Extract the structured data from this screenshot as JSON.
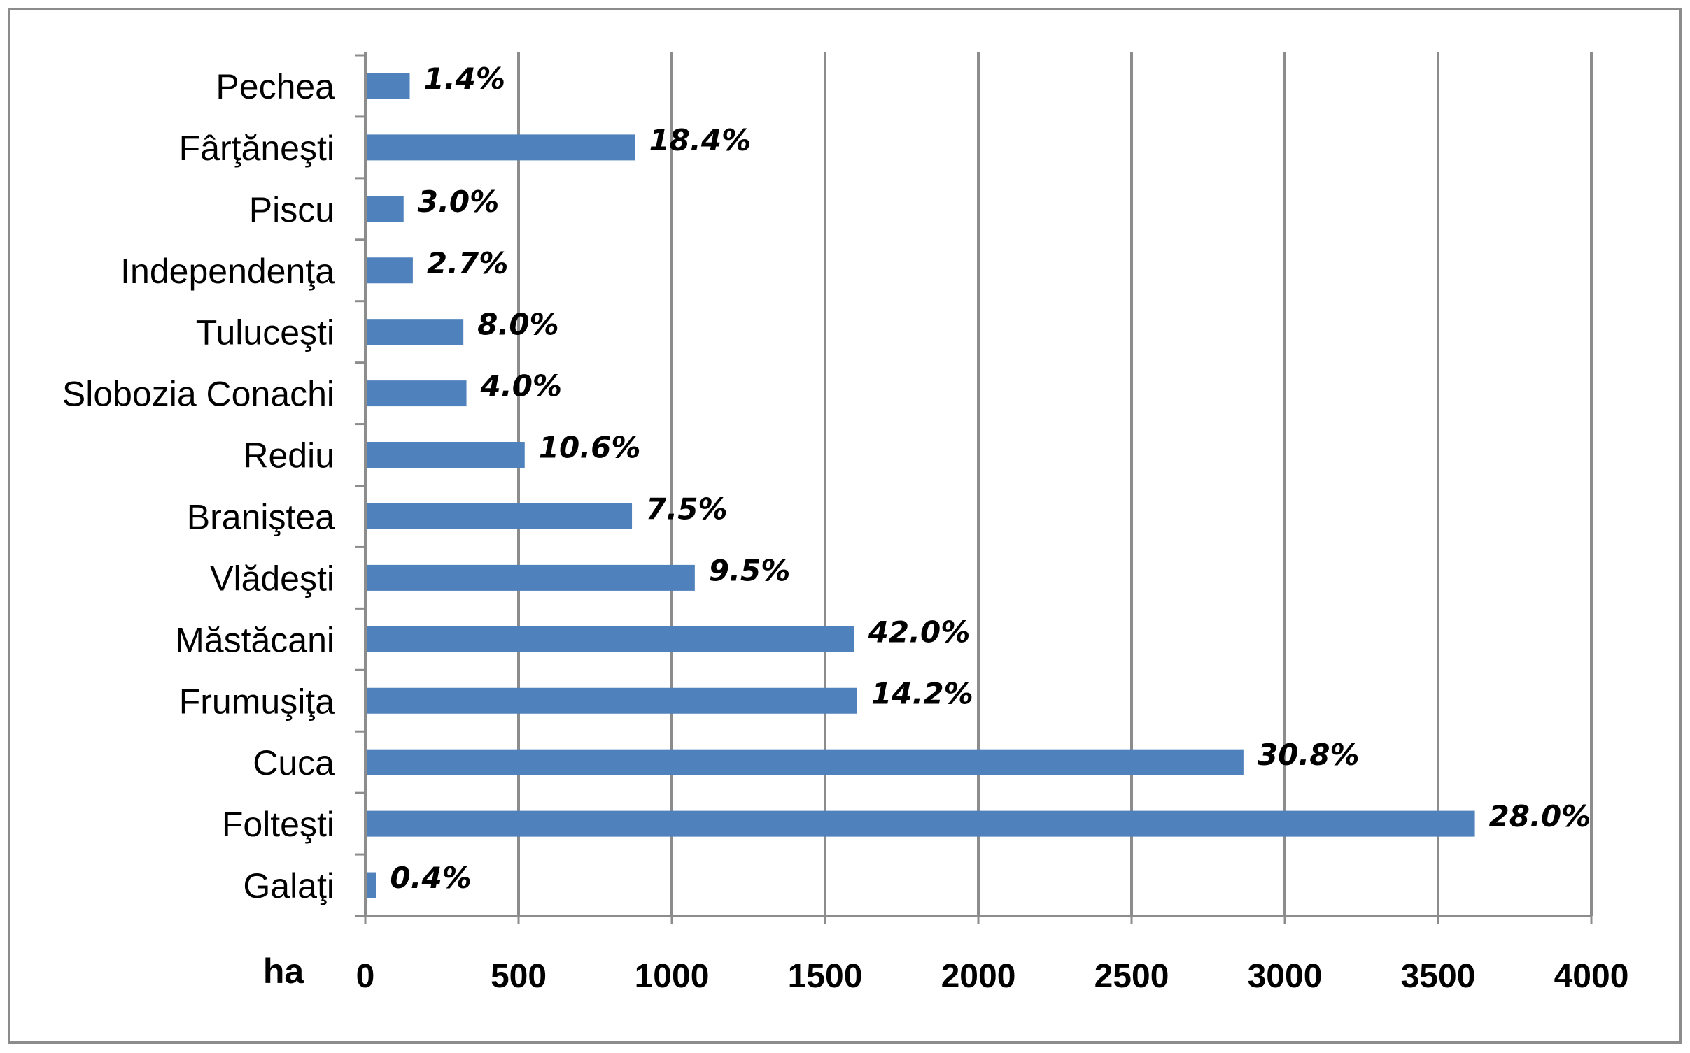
{
  "chart_data": {
    "type": "bar",
    "orientation": "horizontal",
    "title": "",
    "xlabel": "",
    "ylabel": "",
    "unit": "ha",
    "categories": [
      "Pechea",
      "Fârţăneşti",
      "Piscu",
      "Independenţa",
      "Tuluceşti",
      "Slobozia Conachi",
      "Rediu",
      "Braniştea",
      "Vlădeşti",
      "Măstăcani",
      "Frumuşiţa",
      "Cuca",
      "Folteşti",
      "Galaţi"
    ],
    "values": [
      145,
      880,
      125,
      155,
      320,
      330,
      520,
      870,
      1075,
      1595,
      1605,
      2865,
      3620,
      35
    ],
    "data_labels": [
      "1.4%",
      "18.4%",
      "3.0%",
      "2.7%",
      "8.0%",
      "4.0%",
      "10.6%",
      "7.5%",
      "9.5%",
      "42.0%",
      "14.2%",
      "30.8%",
      "28.0%",
      "0.4%"
    ],
    "xlim": [
      0,
      4000
    ],
    "xticks": [
      "0",
      "500",
      "1000",
      "1500",
      "2000",
      "2500",
      "3000",
      "3500",
      "4000"
    ],
    "grid": "vertical",
    "legend": "none",
    "bar_color": "#4f81bd",
    "grid_color": "#8c8c8c",
    "border_color": "#8c8c8c"
  }
}
